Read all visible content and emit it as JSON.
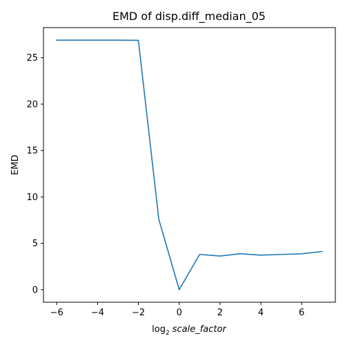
{
  "chart_data": {
    "type": "line",
    "title": "EMD of disp.diff_median_05",
    "xlabel": {
      "prefix": "log",
      "subscript": "2",
      "italic": "scale_factor"
    },
    "ylabel": "EMD",
    "xlim": [
      -6.65,
      7.65
    ],
    "ylim": [
      -1.35,
      28.25
    ],
    "xticks": [
      -6,
      -4,
      -2,
      0,
      2,
      4,
      6
    ],
    "xtick_labels": [
      "−6",
      "−4",
      "−2",
      "0",
      "2",
      "4",
      "6"
    ],
    "yticks": [
      0,
      5,
      10,
      15,
      20,
      25
    ],
    "ytick_labels": [
      "0",
      "5",
      "10",
      "15",
      "20",
      "25"
    ],
    "grid": false,
    "legend": "none",
    "series": [
      {
        "color": "#1f77b4",
        "x": [
          -6,
          -5,
          -4,
          -3,
          -2,
          -1,
          0,
          1,
          2,
          3,
          4,
          5,
          6,
          7
        ],
        "y": [
          26.9,
          26.9,
          26.9,
          26.9,
          26.88,
          7.6,
          0.0,
          3.8,
          3.63,
          3.88,
          3.72,
          3.8,
          3.87,
          4.12
        ]
      }
    ]
  }
}
